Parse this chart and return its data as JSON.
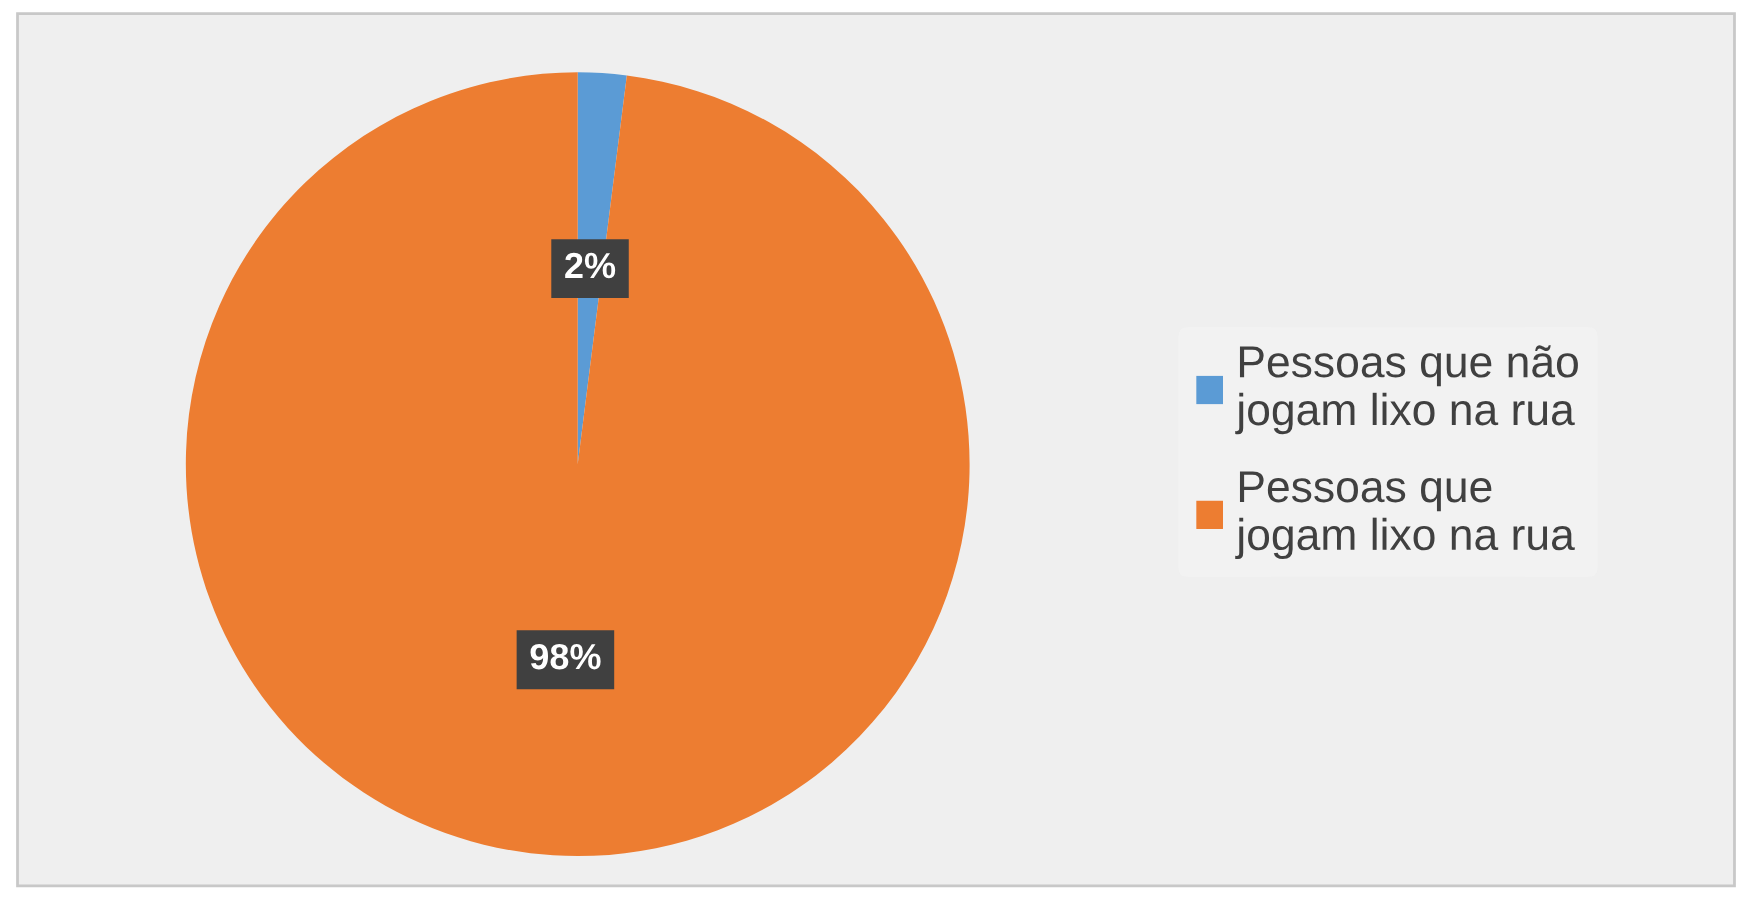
{
  "chart_data": {
    "type": "pie",
    "categories": [
      "Pessoas que não\njogam lixo na rua",
      "Pessoas que\njogam lixo na rua"
    ],
    "values": [
      2,
      98
    ],
    "colors": [
      "#5b9bd5",
      "#ed7d31"
    ],
    "value_labels": [
      "2%",
      "98%"
    ],
    "legend": "right"
  }
}
